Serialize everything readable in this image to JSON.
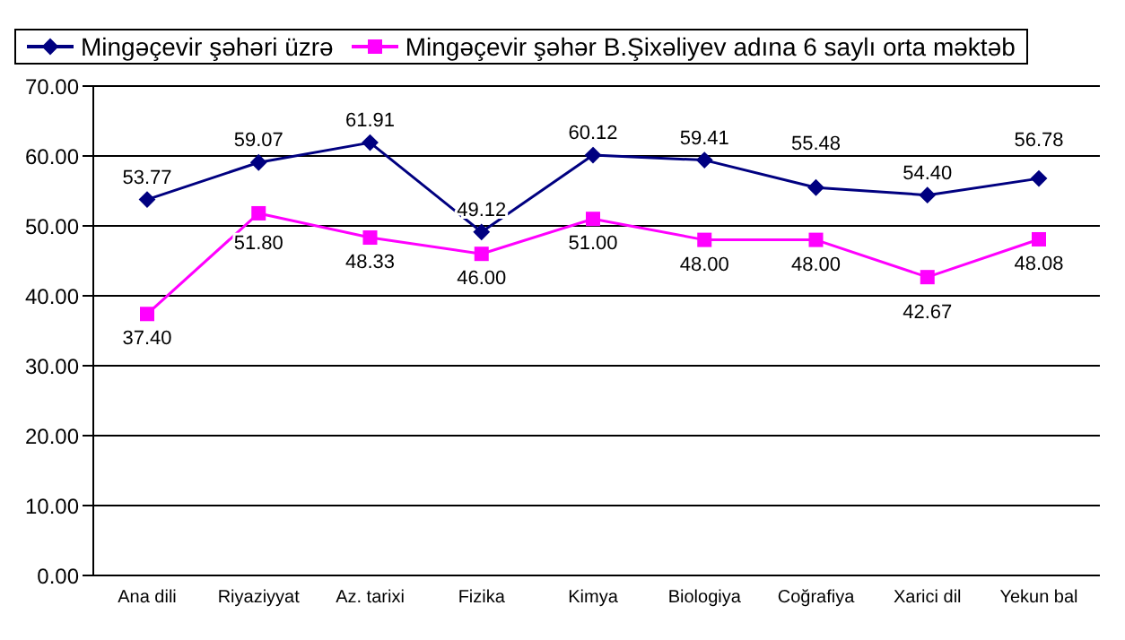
{
  "chart_data": {
    "type": "line",
    "categories": [
      "Ana dili",
      "Riyaziyyat",
      "Az. tarixi",
      "Fizika",
      "Kimya",
      "Biologiya",
      "Coğrafiya",
      "Xarici dil",
      "Yekun bal"
    ],
    "series": [
      {
        "name": "Mingəçevir şəhəri üzrə",
        "color": "#000080",
        "marker": "diamond",
        "values": [
          53.77,
          59.07,
          61.91,
          49.12,
          60.12,
          59.41,
          55.48,
          54.4,
          56.78
        ],
        "value_labels": [
          "53.77",
          "59.07",
          "61.91",
          "49.12",
          "60.12",
          "59.41",
          "55.48",
          "54.40",
          "56.78"
        ]
      },
      {
        "name": "Mingəçevir şəhər B.Şixəliyev adına 6 saylı orta məktəb",
        "color": "#ff00ff",
        "marker": "square",
        "values": [
          37.4,
          51.8,
          48.33,
          46.0,
          51.0,
          48.0,
          48.0,
          42.67,
          48.08
        ],
        "value_labels": [
          "37.40",
          "51.80",
          "48.33",
          "46.00",
          "51.00",
          "48.00",
          "48.00",
          "42.67",
          "48.08"
        ]
      }
    ],
    "ylim": [
      0,
      70
    ],
    "yticks": [
      {
        "value": 0,
        "label": "0.00"
      },
      {
        "value": 10,
        "label": "10.00"
      },
      {
        "value": 20,
        "label": "20.00"
      },
      {
        "value": 30,
        "label": "30.00"
      },
      {
        "value": 40,
        "label": "40.00"
      },
      {
        "value": 50,
        "label": "50.00"
      },
      {
        "value": 60,
        "label": "60.00"
      },
      {
        "value": 70,
        "label": "70.00"
      }
    ],
    "grid": "y",
    "legend": "top left"
  }
}
